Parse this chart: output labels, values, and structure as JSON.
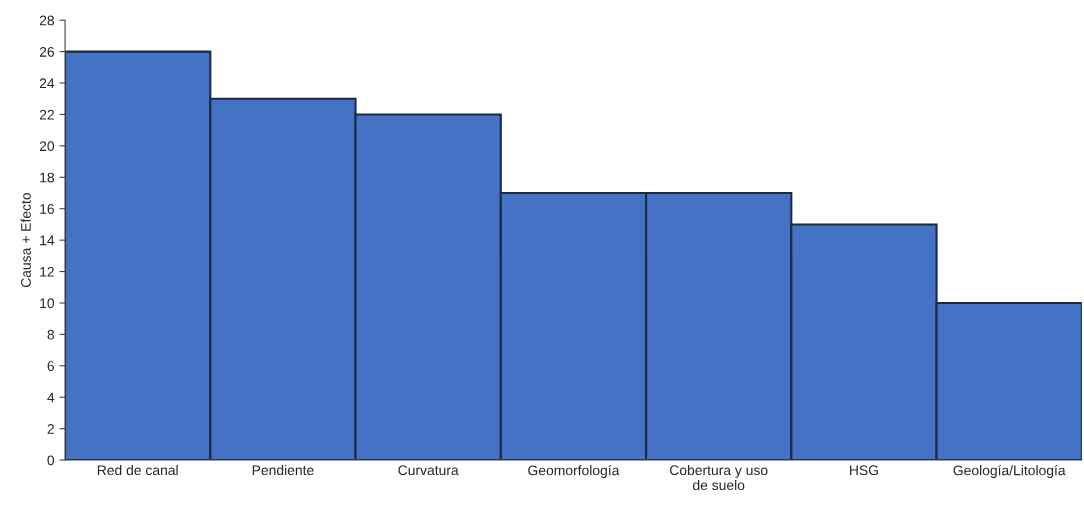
{
  "chart_data": {
    "type": "bar",
    "ylabel": "Causa + Efecto",
    "categories": [
      "Red de canal",
      "Pendiente",
      "Curvatura",
      "Geomorfología",
      "Cobertura y uso\nde suelo",
      "HSG",
      "Geología/Litología"
    ],
    "values": [
      26,
      23,
      22,
      17,
      17,
      15,
      10
    ],
    "color": "#4472c4",
    "ylim": [
      0,
      28
    ],
    "yticks": [
      0,
      2,
      4,
      6,
      8,
      10,
      12,
      14,
      16,
      18,
      20,
      22,
      24,
      26,
      28
    ],
    "grid": false,
    "legend": false
  }
}
